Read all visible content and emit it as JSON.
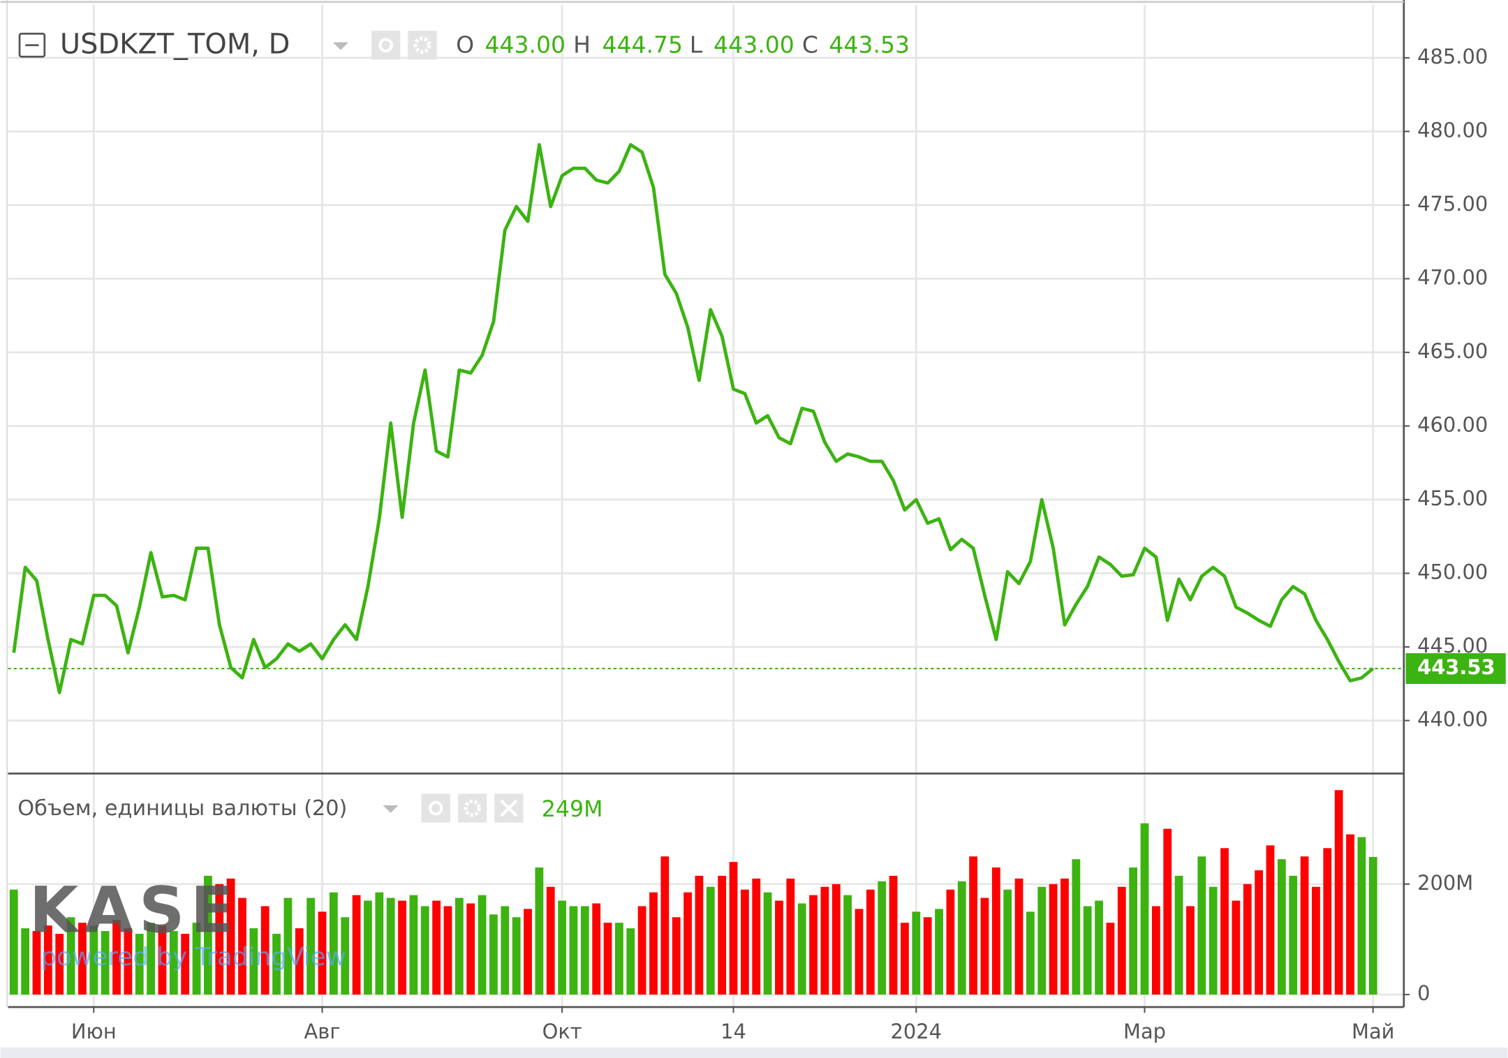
{
  "chart_data": {
    "type": "line",
    "title": "USDKZT_TOM, D",
    "ohlc": {
      "names": [
        "O",
        "H",
        "L",
        "C"
      ],
      "values": [
        443,
        444.75,
        443,
        443.53
      ],
      "value_labels": [
        "443.00",
        "444.75",
        "443.00",
        "443.53"
      ]
    },
    "categories": [
      null,
      null,
      null,
      null,
      null,
      null,
      null,
      "Июн",
      null,
      null,
      null,
      null,
      null,
      null,
      null,
      null,
      null,
      null,
      null,
      null,
      null,
      null,
      null,
      null,
      null,
      null,
      null,
      "Авг",
      null,
      null,
      null,
      null,
      null,
      null,
      null,
      null,
      null,
      null,
      null,
      null,
      null,
      null,
      null,
      null,
      null,
      null,
      null,
      null,
      "Окт",
      null,
      null,
      null,
      null,
      null,
      null,
      null,
      null,
      null,
      null,
      null,
      null,
      null,
      null,
      "14",
      null,
      null,
      null,
      null,
      null,
      null,
      null,
      null,
      null,
      null,
      null,
      null,
      null,
      null,
      null,
      "2024",
      null,
      null,
      null,
      null,
      null,
      null,
      null,
      null,
      null,
      null,
      null,
      null,
      null,
      null,
      null,
      null,
      null,
      null,
      null,
      "Мар",
      null,
      null,
      null,
      null,
      null,
      null,
      null,
      null,
      null,
      null,
      null,
      null,
      null,
      null,
      null,
      null,
      null,
      null,
      null,
      "Май"
    ],
    "series": [
      {
        "color": "#3cb311",
        "values": [
          444.6,
          450.4,
          449.5,
          445.5,
          441.9,
          445.5,
          445.2,
          448.5,
          448.5,
          447.8,
          444.6,
          447.7,
          451.4,
          448.4,
          448.5,
          448.2,
          451.7,
          451.7,
          446.5,
          443.6,
          442.9,
          445.5,
          443.6,
          444.2,
          445.2,
          444.7,
          445.2,
          444.2,
          445.5,
          446.5,
          445.5,
          449.1,
          453.7,
          460.2,
          453.8,
          460.2,
          463.8,
          458.3,
          457.9,
          463.8,
          463.6,
          464.8,
          467.1,
          473.3,
          474.9,
          473.9,
          479.1,
          474.9,
          477.0,
          477.5,
          477.5,
          476.7,
          476.5,
          477.3,
          479.1,
          478.6,
          476.2,
          470.3,
          469.0,
          466.7,
          463.1,
          467.9,
          466.1,
          462.5,
          462.2,
          460.2,
          460.7,
          459.2,
          458.8,
          461.2,
          461.0,
          458.9,
          457.6,
          458.1,
          457.9,
          457.6,
          457.6,
          456.3,
          454.3,
          455.0,
          453.4,
          453.7,
          451.6,
          452.3,
          451.7,
          448.5,
          445.5,
          450.1,
          449.3,
          450.8,
          455.0,
          451.7,
          446.5,
          447.9,
          449.1,
          451.1,
          450.6,
          449.8,
          449.9,
          451.7,
          451.1,
          446.8,
          449.6,
          448.2,
          449.8,
          450.4,
          449.8,
          447.7,
          447.3,
          446.8,
          446.4,
          448.2,
          449.1,
          448.6,
          446.8,
          445.5,
          444.0,
          442.7,
          442.9,
          443.53
        ]
      },
      {
        "name": "Объем, единицы валюты (20)",
        "type": "bar",
        "axis": "y2",
        "readout": "249M",
        "values": [
          190000000,
          120000000,
          115000000,
          125000000,
          110000000,
          140000000,
          130000000,
          125000000,
          115000000,
          135000000,
          120000000,
          110000000,
          130000000,
          125000000,
          115000000,
          110000000,
          130000000,
          215000000,
          200000000,
          210000000,
          175000000,
          120000000,
          160000000,
          110000000,
          175000000,
          120000000,
          175000000,
          150000000,
          185000000,
          140000000,
          180000000,
          170000000,
          185000000,
          175000000,
          170000000,
          180000000,
          160000000,
          170000000,
          160000000,
          175000000,
          165000000,
          180000000,
          145000000,
          160000000,
          140000000,
          155000000,
          230000000,
          195000000,
          170000000,
          160000000,
          160000000,
          165000000,
          130000000,
          130000000,
          120000000,
          160000000,
          185000000,
          250000000,
          140000000,
          185000000,
          215000000,
          195000000,
          215000000,
          240000000,
          190000000,
          210000000,
          185000000,
          170000000,
          210000000,
          165000000,
          180000000,
          195000000,
          200000000,
          180000000,
          155000000,
          190000000,
          205000000,
          215000000,
          130000000,
          150000000,
          140000000,
          155000000,
          190000000,
          205000000,
          250000000,
          175000000,
          230000000,
          190000000,
          210000000,
          150000000,
          195000000,
          200000000,
          210000000,
          245000000,
          160000000,
          170000000,
          130000000,
          195000000,
          230000000,
          310000000,
          160000000,
          300000000,
          215000000,
          160000000,
          250000000,
          195000000,
          265000000,
          170000000,
          200000000,
          225000000,
          270000000,
          245000000,
          215000000,
          250000000,
          195000000,
          265000000,
          370000000,
          290000000,
          285000000,
          249000000
        ],
        "colors": [
          "#3cb311",
          "#3cb311",
          "#ff0000",
          "#ff0000",
          "#ff0000",
          "#3cb311",
          "#ff0000",
          "#3cb311",
          "#3cb311",
          "#ff0000",
          "#ff0000",
          "#3cb311",
          "#3cb311",
          "#ff0000",
          "#3cb311",
          "#ff0000",
          "#3cb311",
          "#3cb311",
          "#ff0000",
          "#ff0000",
          "#ff0000",
          "#3cb311",
          "#ff0000",
          "#3cb311",
          "#3cb311",
          "#ff0000",
          "#3cb311",
          "#ff0000",
          "#3cb311",
          "#3cb311",
          "#ff0000",
          "#3cb311",
          "#3cb311",
          "#3cb311",
          "#ff0000",
          "#3cb311",
          "#3cb311",
          "#ff0000",
          "#ff0000",
          "#3cb311",
          "#ff0000",
          "#3cb311",
          "#3cb311",
          "#3cb311",
          "#3cb311",
          "#ff0000",
          "#3cb311",
          "#ff0000",
          "#3cb311",
          "#3cb311",
          "#3cb311",
          "#ff0000",
          "#ff0000",
          "#3cb311",
          "#3cb311",
          "#ff0000",
          "#ff0000",
          "#ff0000",
          "#ff0000",
          "#ff0000",
          "#ff0000",
          "#3cb311",
          "#ff0000",
          "#ff0000",
          "#ff0000",
          "#ff0000",
          "#3cb311",
          "#ff0000",
          "#ff0000",
          "#3cb311",
          "#ff0000",
          "#ff0000",
          "#ff0000",
          "#3cb311",
          "#ff0000",
          "#ff0000",
          "#3cb311",
          "#ff0000",
          "#ff0000",
          "#3cb311",
          "#ff0000",
          "#3cb311",
          "#ff0000",
          "#3cb311",
          "#ff0000",
          "#ff0000",
          "#ff0000",
          "#3cb311",
          "#ff0000",
          "#3cb311",
          "#3cb311",
          "#ff0000",
          "#ff0000",
          "#3cb311",
          "#3cb311",
          "#3cb311",
          "#ff0000",
          "#ff0000",
          "#3cb311",
          "#3cb311",
          "#ff0000",
          "#ff0000",
          "#3cb311",
          "#ff0000",
          "#3cb311",
          "#3cb311",
          "#ff0000",
          "#ff0000",
          "#ff0000",
          "#ff0000",
          "#ff0000",
          "#3cb311",
          "#3cb311",
          "#ff0000",
          "#ff0000",
          "#ff0000",
          "#ff0000",
          "#ff0000",
          "#3cb311",
          "#3cb311"
        ]
      }
    ],
    "last_price": {
      "value": 443.53,
      "label": "443.53"
    },
    "ylim": [
      436.4,
      488.6
    ],
    "yticks": [
      {
        "value": 440,
        "label": "440.00"
      },
      {
        "value": 445,
        "label": "445.00"
      },
      {
        "value": 450,
        "label": "450.00"
      },
      {
        "value": 455,
        "label": "455.00"
      },
      {
        "value": 460,
        "label": "460.00"
      },
      {
        "value": 465,
        "label": "465.00"
      },
      {
        "value": 470,
        "label": "470.00"
      },
      {
        "value": 475,
        "label": "475.00"
      },
      {
        "value": 480,
        "label": "480.00"
      },
      {
        "value": 485,
        "label": "485.00"
      }
    ],
    "y2lim": [
      -22600000,
      400000000
    ],
    "y2ticks": [
      0,
      {
        "value": 200000000,
        "label": "200M"
      }
    ],
    "grid": true,
    "watermark": {
      "logo": "KASE",
      "text": "powered by TradingView"
    }
  }
}
